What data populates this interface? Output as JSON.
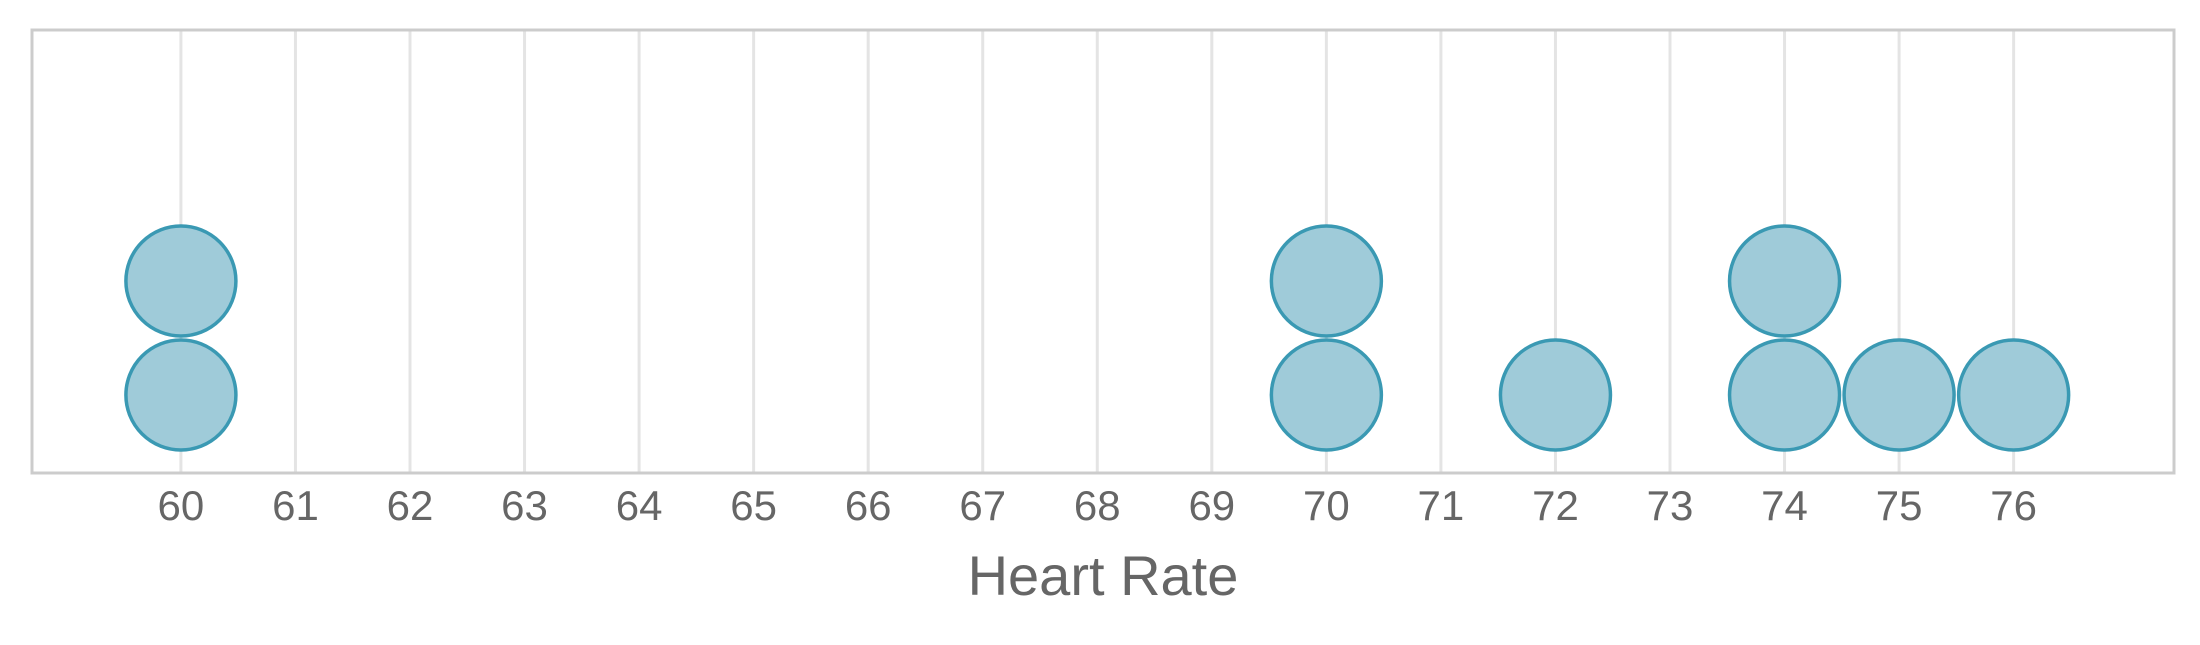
{
  "chart_data": {
    "type": "dot",
    "title": "",
    "xlabel": "Heart Rate",
    "ylabel": "",
    "xlim": [
      58.7,
      77.4
    ],
    "x_ticks": [
      60,
      61,
      62,
      63,
      64,
      65,
      66,
      67,
      68,
      69,
      70,
      71,
      72,
      73,
      74,
      75,
      76
    ],
    "grid": "vertical",
    "legend": "none",
    "values": [
      60,
      60,
      70,
      70,
      72,
      74,
      74,
      75,
      76
    ],
    "counts": [
      {
        "x": 60,
        "count": 2
      },
      {
        "x": 70,
        "count": 2
      },
      {
        "x": 72,
        "count": 1
      },
      {
        "x": 74,
        "count": 2
      },
      {
        "x": 75,
        "count": 1
      },
      {
        "x": 76,
        "count": 1
      }
    ],
    "colors": {
      "dot_fill": "#9fcbd9",
      "dot_stroke": "#3a99b3",
      "grid": "#e4e4e4",
      "frame": "#cccccc",
      "text": "#666666"
    }
  }
}
